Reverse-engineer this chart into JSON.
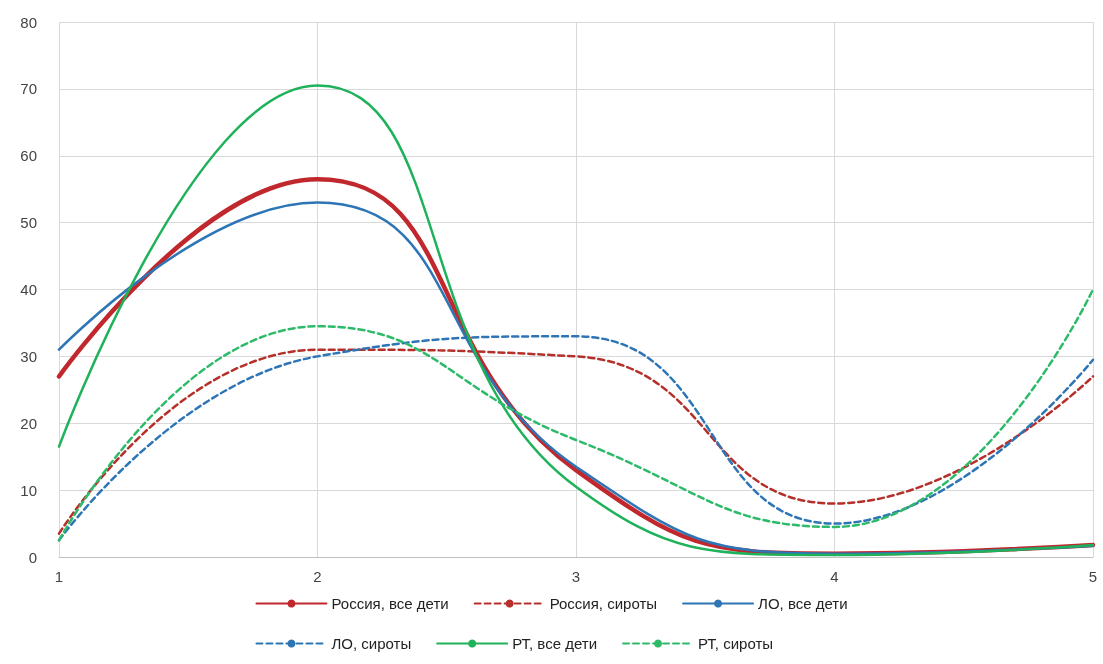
{
  "chart_data": {
    "type": "line",
    "x": [
      1,
      2,
      3,
      4,
      5
    ],
    "xlim": [
      1,
      5
    ],
    "xticks": [
      1,
      2,
      3,
      4,
      5
    ],
    "ylim": [
      0,
      80
    ],
    "yticks": [
      0,
      10,
      20,
      30,
      40,
      50,
      60,
      70,
      80
    ],
    "grid": true,
    "legend": "bottom",
    "marker": "none",
    "series": [
      {
        "name": "Россия, все дети",
        "color": "#c0282d",
        "line_style": "solid",
        "values": [
          27,
          56.5,
          13,
          0.5,
          1.8
        ]
      },
      {
        "name": "Россия, сироты",
        "color": "#b5302a",
        "line_style": "dashed",
        "values": [
          3.5,
          31,
          30,
          8,
          27
        ]
      },
      {
        "name": "ЛО, все дети",
        "color": "#2e75b6",
        "line_style": "solid",
        "values": [
          31,
          53,
          13.5,
          0.5,
          1.7
        ]
      },
      {
        "name": "ЛО, сироты",
        "color": "#2e75b6",
        "line_style": "dashed",
        "values": [
          2.5,
          30,
          33,
          5,
          29.5
        ]
      },
      {
        "name": "РТ, все дети",
        "color": "#1fb25a",
        "line_style": "solid",
        "values": [
          16.5,
          70.5,
          10.5,
          0.3,
          1.8
        ]
      },
      {
        "name": "РТ, сироты",
        "color": "#2dbb6a",
        "line_style": "dashed",
        "values": [
          2.5,
          34.5,
          17.5,
          4.5,
          40
        ]
      }
    ]
  }
}
